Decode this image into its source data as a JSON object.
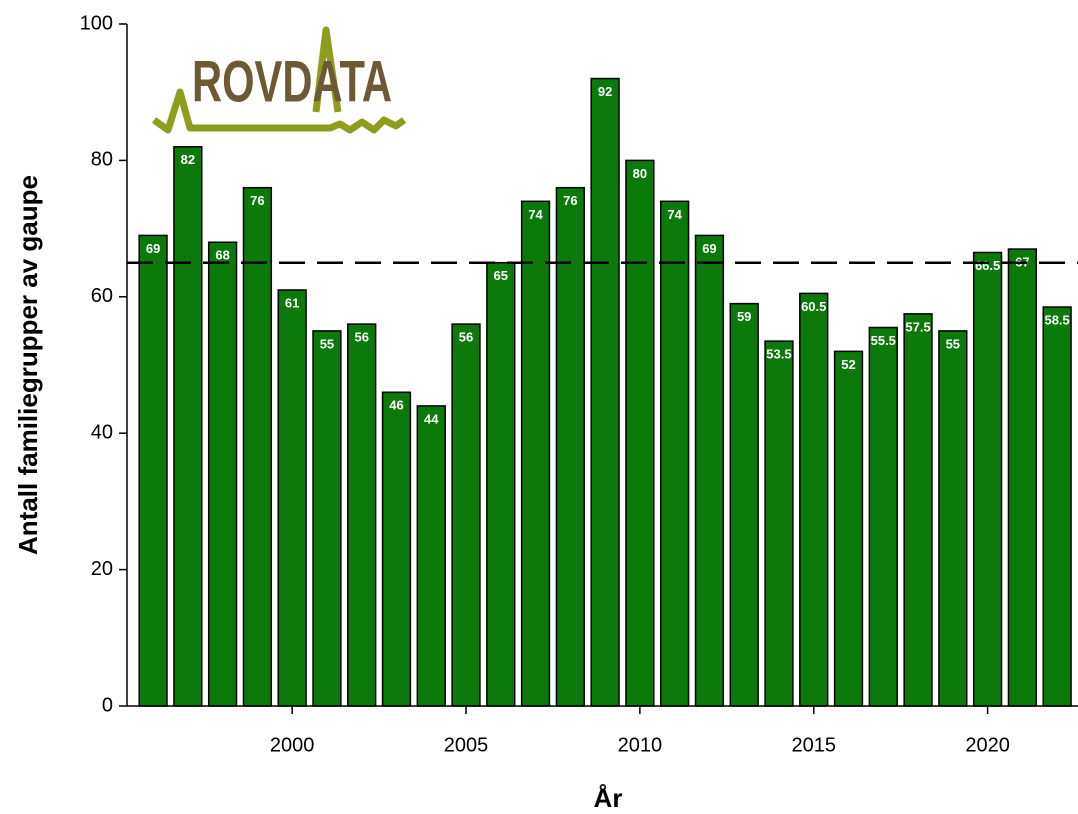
{
  "chart_data": {
    "type": "bar",
    "logo": "ROVDATA",
    "x_label": "År",
    "y_label": "Antall familiegrupper av gaupe",
    "x": [
      1996,
      1997,
      1998,
      1999,
      2000,
      2001,
      2002,
      2003,
      2004,
      2005,
      2006,
      2007,
      2008,
      2009,
      2010,
      2011,
      2012,
      2013,
      2014,
      2015,
      2016,
      2017,
      2018,
      2019,
      2020,
      2021,
      2022
    ],
    "values": [
      69,
      82,
      68,
      76,
      61,
      55,
      56,
      46,
      44,
      56,
      65,
      74,
      76,
      92,
      80,
      74,
      69,
      59,
      53.5,
      60.5,
      52,
      55.5,
      57.5,
      55,
      66.5,
      67,
      58.5
    ],
    "color": "#0b7a0b",
    "reference_line": 65,
    "xlim": [
      1995.25,
      2022.6
    ],
    "xticks": [
      2000,
      2005,
      2010,
      2015,
      2020
    ],
    "ylim": [
      0,
      100
    ],
    "yticks": [
      0,
      20,
      40,
      60,
      80,
      100
    ]
  }
}
